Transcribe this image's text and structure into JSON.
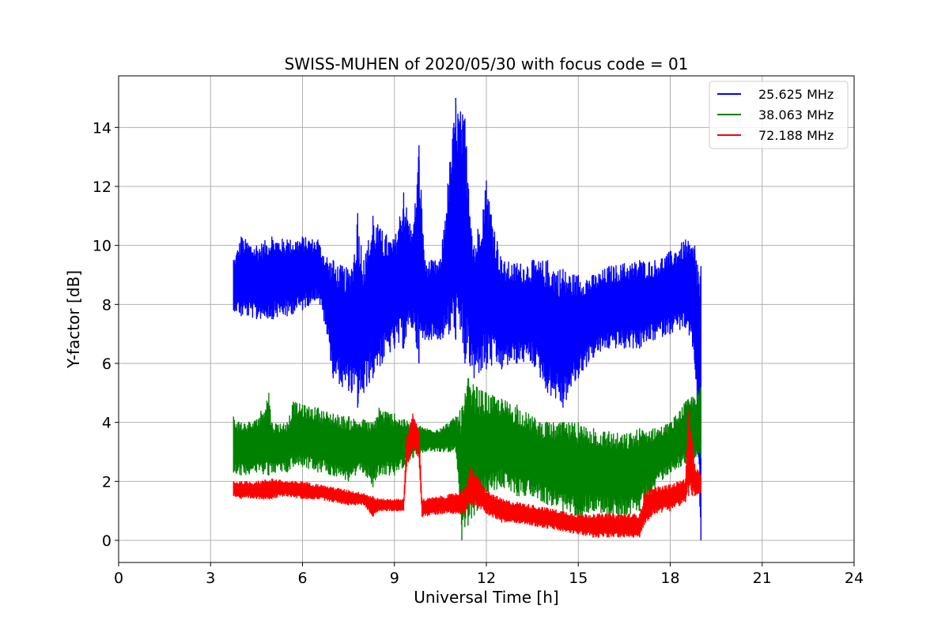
{
  "chart_data": {
    "type": "line",
    "title": "SWISS-MUHEN of 2020/05/30 with focus code = 01",
    "xlabel": "Universal Time [h]",
    "ylabel": "Y-factor [dB]",
    "xlim": [
      0,
      24
    ],
    "ylim": [
      -0.75,
      15.75
    ],
    "xticks": [
      0,
      3,
      6,
      9,
      12,
      15,
      18,
      21,
      24
    ],
    "yticks": [
      0,
      2,
      4,
      6,
      8,
      10,
      12,
      14
    ],
    "grid": true,
    "legend_position": "top-right",
    "series": [
      {
        "name": "25.625 MHz",
        "color": "#0000ff",
        "x": [
          3.75,
          4.0,
          4.5,
          5.0,
          5.5,
          6.0,
          6.5,
          6.8,
          7.0,
          7.3,
          7.6,
          7.8,
          8.0,
          8.3,
          8.6,
          9.0,
          9.3,
          9.6,
          9.8,
          10.0,
          10.5,
          11.0,
          11.3,
          11.6,
          12.0,
          12.5,
          13.0,
          13.5,
          14.0,
          14.5,
          15.0,
          15.5,
          16.0,
          16.5,
          17.0,
          17.5,
          18.0,
          18.5,
          18.8,
          19.0
        ],
        "min": [
          7.8,
          7.6,
          7.5,
          7.5,
          7.6,
          7.8,
          8.2,
          7.0,
          5.5,
          5.2,
          5.0,
          4.5,
          5.0,
          5.5,
          6.0,
          6.5,
          6.5,
          7.2,
          6.0,
          6.8,
          6.8,
          6.8,
          6.0,
          5.5,
          5.8,
          5.8,
          6.0,
          6.0,
          5.0,
          4.5,
          5.5,
          6.2,
          6.5,
          6.5,
          6.5,
          6.8,
          7.0,
          7.2,
          6.0,
          0.0
        ],
        "max": [
          9.5,
          10.3,
          10.0,
          10.3,
          10.2,
          10.3,
          10.2,
          9.6,
          9.5,
          9.3,
          9.2,
          11.1,
          9.5,
          11.0,
          10.5,
          10.2,
          11.8,
          10.4,
          13.4,
          9.5,
          9.5,
          15.0,
          14.3,
          10.0,
          12.2,
          9.5,
          9.4,
          9.5,
          9.5,
          9.2,
          9.0,
          9.0,
          9.3,
          9.4,
          9.5,
          9.5,
          9.8,
          10.2,
          10.0,
          9.3
        ]
      },
      {
        "name": "38.063 MHz",
        "color": "#008000",
        "x": [
          3.75,
          4.0,
          4.5,
          4.9,
          5.0,
          5.5,
          5.7,
          6.0,
          6.5,
          7.0,
          7.5,
          8.0,
          8.3,
          8.5,
          9.0,
          9.3,
          9.6,
          10.0,
          10.5,
          11.0,
          11.2,
          11.4,
          11.7,
          12.0,
          12.5,
          13.0,
          13.5,
          14.0,
          14.5,
          15.0,
          15.5,
          16.0,
          16.5,
          17.0,
          17.5,
          18.0,
          18.5,
          19.0
        ],
        "min": [
          2.3,
          2.2,
          2.3,
          2.2,
          2.3,
          2.3,
          2.5,
          2.5,
          2.3,
          2.2,
          2.0,
          2.3,
          1.8,
          2.2,
          2.2,
          2.5,
          2.8,
          3.0,
          3.0,
          3.0,
          0.0,
          0.5,
          1.0,
          1.5,
          1.8,
          1.5,
          1.5,
          1.2,
          1.0,
          0.8,
          1.0,
          0.8,
          0.8,
          1.0,
          1.8,
          2.3,
          2.6,
          2.8
        ],
        "max": [
          4.2,
          4.0,
          4.1,
          5.0,
          4.0,
          4.0,
          4.7,
          4.6,
          4.5,
          4.3,
          4.2,
          4.1,
          4.0,
          4.5,
          4.3,
          4.1,
          4.0,
          3.8,
          3.8,
          4.2,
          4.5,
          5.5,
          5.2,
          5.0,
          4.8,
          4.6,
          4.2,
          4.0,
          4.0,
          4.0,
          3.8,
          3.7,
          3.6,
          3.8,
          3.8,
          4.0,
          4.7,
          5.2
        ]
      },
      {
        "name": "72.188 MHz",
        "color": "#ff0000",
        "x": [
          3.75,
          4.0,
          4.5,
          5.0,
          5.5,
          6.0,
          6.5,
          7.0,
          7.5,
          8.0,
          8.3,
          8.5,
          9.0,
          9.3,
          9.4,
          9.6,
          9.8,
          9.9,
          10.5,
          11.0,
          11.3,
          11.5,
          12.0,
          12.5,
          13.0,
          13.5,
          14.0,
          14.5,
          15.0,
          15.5,
          16.0,
          16.5,
          17.0,
          17.2,
          17.5,
          18.0,
          18.5,
          18.6,
          18.8,
          19.0
        ],
        "min": [
          1.5,
          1.4,
          1.4,
          1.4,
          1.5,
          1.4,
          1.4,
          1.3,
          1.2,
          1.2,
          0.8,
          1.0,
          1.0,
          1.0,
          2.5,
          3.0,
          2.8,
          0.8,
          0.9,
          0.9,
          0.9,
          1.2,
          0.9,
          0.6,
          0.6,
          0.5,
          0.4,
          0.3,
          0.2,
          0.1,
          0.1,
          0.1,
          0.1,
          0.6,
          0.9,
          1.0,
          1.3,
          1.5,
          1.5,
          1.6
        ],
        "max": [
          2.0,
          2.0,
          2.0,
          2.1,
          2.0,
          2.0,
          1.9,
          1.8,
          1.7,
          1.6,
          1.5,
          1.4,
          1.4,
          1.4,
          3.5,
          4.3,
          3.8,
          1.4,
          1.5,
          1.6,
          1.8,
          2.5,
          1.7,
          1.4,
          1.3,
          1.2,
          1.1,
          1.0,
          0.9,
          0.9,
          0.9,
          0.9,
          0.9,
          1.7,
          1.8,
          1.9,
          2.1,
          4.4,
          2.6,
          2.2
        ]
      }
    ]
  }
}
